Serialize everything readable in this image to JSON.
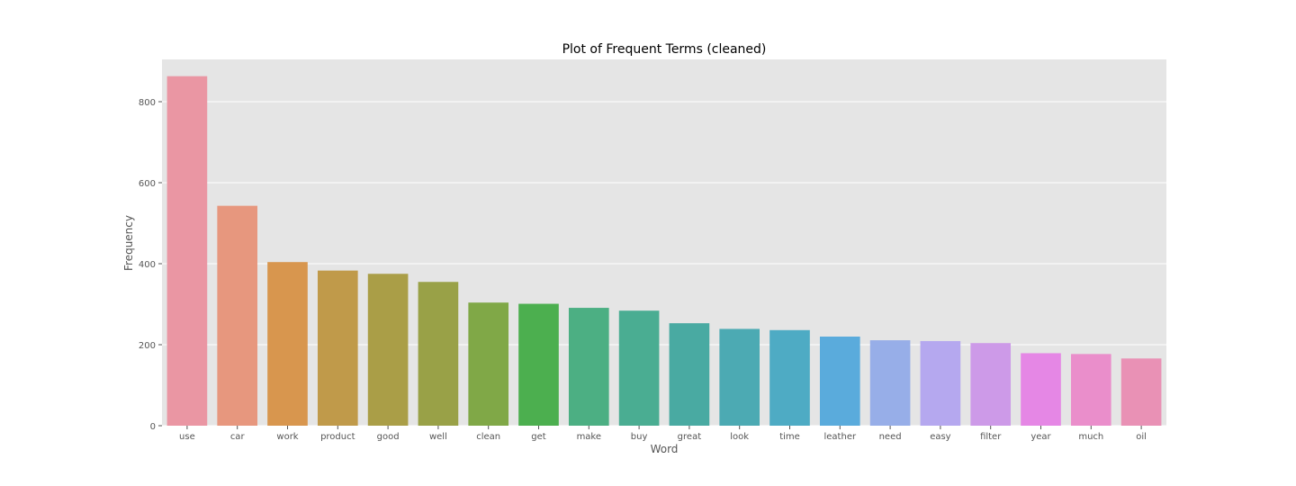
{
  "chart_data": {
    "type": "bar",
    "title": "Plot of Frequent Terms (cleaned)",
    "xlabel": "Word",
    "ylabel": "Frequency",
    "ylim": [
      0,
      900
    ],
    "yticks": [
      0,
      200,
      400,
      600,
      800
    ],
    "grid": true,
    "categories": [
      "use",
      "car",
      "work",
      "product",
      "good",
      "well",
      "clean",
      "get",
      "make",
      "buy",
      "great",
      "look",
      "time",
      "leather",
      "need",
      "easy",
      "filter",
      "year",
      "much",
      "oil"
    ],
    "values": [
      863,
      543,
      404,
      383,
      375,
      355,
      304,
      301,
      291,
      284,
      253,
      239,
      236,
      220,
      211,
      209,
      204,
      179,
      177,
      166
    ],
    "colors": [
      "#ea96a3",
      "#e7977e",
      "#d8964e",
      "#c09a4a",
      "#aa9e47",
      "#99a147",
      "#80a847",
      "#4caf4f",
      "#4caf83",
      "#4aad92",
      "#49aaa2",
      "#4caab3",
      "#4eabc4",
      "#5aabdc",
      "#97aee8",
      "#b5a8ef",
      "#cd9ae8",
      "#e587e5",
      "#ea8ecb",
      "#e991b5"
    ]
  }
}
